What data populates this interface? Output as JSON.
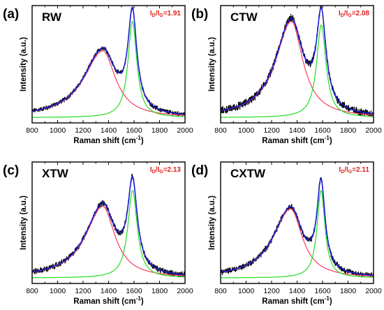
{
  "figure": {
    "colors": {
      "raw": "#000000",
      "fit_total": "#1f1fd6",
      "d_band": "#ff3b5c",
      "g_band": "#22dd22",
      "ratio_text": "#e0201b"
    }
  },
  "chart_data": [
    {
      "type": "line",
      "panel": "(a)",
      "sample": "RW",
      "ratio": {
        "text_i1": "I",
        "sub1": "D",
        "slash": "/",
        "text_i2": "I",
        "sub2": "G",
        "value": "=1.91"
      },
      "xlabel": "Raman shift (cm",
      "xlabel_sup": "-1",
      "xlabel_close": ")",
      "ylabel": "Intensity (a.u.)",
      "xlim": [
        800,
        2000
      ],
      "ylim": [
        0,
        1
      ],
      "xticks": [
        800,
        1000,
        1200,
        1400,
        1600,
        1800,
        2000
      ],
      "xtick_labels": [
        "800",
        "1000",
        "1200",
        "1400",
        "1600",
        "1800",
        "2000"
      ],
      "grid": false,
      "bands": [
        {
          "name": "D",
          "center": 1355,
          "height": 0.57,
          "hwhm_left": 180,
          "hwhm_right": 120
        },
        {
          "name": "G",
          "center": 1587,
          "height": 0.82,
          "hwhm": 42
        }
      ],
      "noise": 0.015
    },
    {
      "type": "line",
      "panel": "(b)",
      "sample": "CTW",
      "ratio": {
        "text_i1": "I",
        "sub1": "D",
        "slash": "/",
        "text_i2": "I",
        "sub2": "G",
        "value": "=2.08"
      },
      "xlabel": "Raman shift (cm",
      "xlabel_sup": "-1",
      "xlabel_close": ")",
      "ylabel": "Intensity (a.u.)",
      "xlim": [
        800,
        2000
      ],
      "ylim": [
        0,
        1
      ],
      "xticks": [
        800,
        1000,
        1200,
        1400,
        1600,
        1800,
        2000
      ],
      "xtick_labels": [
        "800",
        "1000",
        "1200",
        "1400",
        "1600",
        "1800",
        "2000"
      ],
      "grid": false,
      "bands": [
        {
          "name": "D",
          "center": 1355,
          "height": 0.82,
          "hwhm_left": 150,
          "hwhm_right": 110
        },
        {
          "name": "G",
          "center": 1590,
          "height": 0.79,
          "hwhm": 45
        }
      ],
      "noise": 0.025
    },
    {
      "type": "line",
      "panel": "(c)",
      "sample": "XTW",
      "ratio": {
        "text_i1": "I",
        "sub1": "D",
        "slash": "/",
        "text_i2": "I",
        "sub2": "G",
        "value": "=2.13"
      },
      "xlabel": "Raman shift (cm",
      "xlabel_sup": "-1",
      "xlabel_close": ")",
      "ylabel": "Intensity (a.u.)",
      "xlim": [
        800,
        2000
      ],
      "ylim": [
        0,
        1
      ],
      "xticks": [
        800,
        1000,
        1200,
        1400,
        1600,
        1800,
        2000
      ],
      "xtick_labels": [
        "800",
        "1000",
        "1200",
        "1400",
        "1600",
        "1800",
        "2000"
      ],
      "grid": false,
      "bands": [
        {
          "name": "D",
          "center": 1355,
          "height": 0.59,
          "hwhm_left": 165,
          "hwhm_right": 115
        },
        {
          "name": "G",
          "center": 1588,
          "height": 0.72,
          "hwhm": 45
        }
      ],
      "noise": 0.018
    },
    {
      "type": "line",
      "panel": "(d)",
      "sample": "CXTW",
      "ratio": {
        "text_i1": "I",
        "sub1": "D",
        "slash": "/",
        "text_i2": "I",
        "sub2": "G",
        "value": "=2.11"
      },
      "xlabel": "Raman shift (cm",
      "xlabel_sup": "-1",
      "xlabel_close": ")",
      "ylabel": "Intensity (a.u.)",
      "xlim": [
        800,
        2000
      ],
      "ylim": [
        0,
        1
      ],
      "xticks": [
        800,
        1000,
        1200,
        1400,
        1600,
        1800,
        2000
      ],
      "xtick_labels": [
        "800",
        "1000",
        "1200",
        "1400",
        "1600",
        "1800",
        "2000"
      ],
      "grid": false,
      "bands": [
        {
          "name": "D",
          "center": 1350,
          "height": 0.57,
          "hwhm_left": 165,
          "hwhm_right": 110
        },
        {
          "name": "G",
          "center": 1588,
          "height": 0.72,
          "hwhm": 38
        }
      ],
      "noise": 0.018
    }
  ]
}
